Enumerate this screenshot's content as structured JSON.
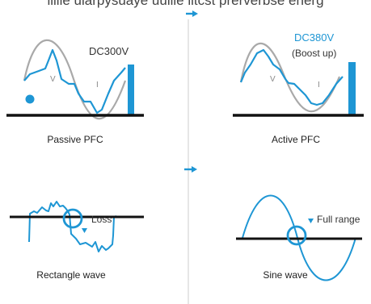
{
  "heading": "liiiie ularpysuaye uuiiie iitcst prerverbse energ",
  "colors": {
    "blue": "#1e96d4",
    "grey": "#a9a9a9",
    "black": "#111111",
    "divider": "#cccccc"
  },
  "icons": [
    "arrow-right-icon",
    "arrow-right-icon",
    "dot-icon"
  ],
  "panels": {
    "passive_pfc": {
      "caption": "Passive PFC",
      "voltage_label": "DC300V",
      "voltage_marker": "V",
      "current_marker": "I"
    },
    "active_pfc": {
      "caption": "Active PFC",
      "voltage_label": "DC380V",
      "boost_label": "(Boost up)",
      "voltage_marker": "V",
      "current_marker": "I"
    },
    "rectangle_wave": {
      "caption": "Rectangle wave",
      "loss_label": "Loss"
    },
    "sine_wave": {
      "caption": "Sine wave",
      "range_label": "Full range"
    }
  }
}
